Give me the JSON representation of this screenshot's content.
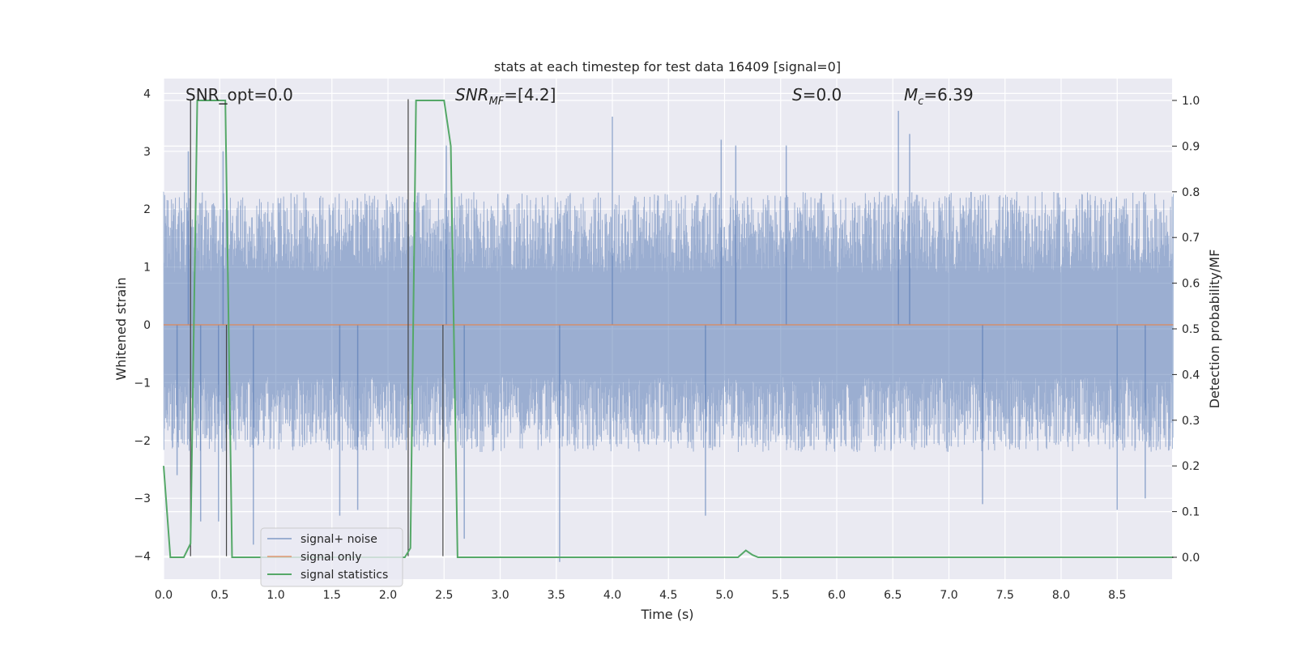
{
  "chart_data": {
    "type": "line",
    "title": "stats at each timestep for test data 16409 [signal=0]",
    "xlabel": "Time (s)",
    "ylabel_left": "Whitened strain",
    "ylabel_right": "Detection probability/MF",
    "xlim": [
      0.0,
      9.0
    ],
    "ylim_left": [
      -4.4,
      4.25
    ],
    "ylim_right": [
      -0.05,
      1.04
    ],
    "grid": true,
    "xticks": [
      "0.0",
      "0.5",
      "1.0",
      "1.5",
      "2.0",
      "2.5",
      "3.0",
      "3.5",
      "4.0",
      "4.5",
      "5.0",
      "5.5",
      "6.0",
      "6.5",
      "7.0",
      "7.5",
      "8.0",
      "8.5"
    ],
    "yticks_left": [
      "4",
      "3",
      "2",
      "1",
      "0",
      "−1",
      "−2",
      "−3",
      "−4"
    ],
    "yticks_right": [
      "1.0",
      "0.9",
      "0.8",
      "0.7",
      "0.6",
      "0.5",
      "0.4",
      "0.3",
      "0.2",
      "0.1",
      "0.0"
    ],
    "legend_position": "lower-left",
    "annotations": {
      "snr_opt": "SNR_opt=0.0",
      "snr_mf_main": "SNR",
      "snr_mf_sub": "MF",
      "snr_mf_rest": "=[4.2]",
      "s_main": "S",
      "s_rest": "=0.0",
      "mc_main": "M",
      "mc_sub": "c",
      "mc_rest": "=6.39"
    },
    "series": [
      {
        "name": "signal+ noise",
        "color": "#4c72b0",
        "axis": "left",
        "description_envelope": {
          "x": [
            0.0,
            9.0
          ],
          "typical_max": 2.2,
          "typical_min": -2.1
        },
        "spikes": [
          {
            "x": 0.12,
            "y": -2.6
          },
          {
            "x": 0.22,
            "y": 3.0
          },
          {
            "x": 0.33,
            "y": -3.4
          },
          {
            "x": 0.49,
            "y": -3.4
          },
          {
            "x": 0.53,
            "y": 3.0
          },
          {
            "x": 0.8,
            "y": -3.8
          },
          {
            "x": 1.57,
            "y": -3.3
          },
          {
            "x": 1.73,
            "y": -3.2
          },
          {
            "x": 2.52,
            "y": 3.1
          },
          {
            "x": 2.68,
            "y": -3.7
          },
          {
            "x": 3.53,
            "y": -4.1
          },
          {
            "x": 4.0,
            "y": 3.6
          },
          {
            "x": 4.83,
            "y": -3.3
          },
          {
            "x": 4.97,
            "y": 3.2
          },
          {
            "x": 5.1,
            "y": 3.1
          },
          {
            "x": 5.55,
            "y": 3.1
          },
          {
            "x": 6.55,
            "y": 3.7
          },
          {
            "x": 6.65,
            "y": 3.3
          },
          {
            "x": 7.3,
            "y": -3.1
          },
          {
            "x": 8.5,
            "y": -3.2
          },
          {
            "x": 8.75,
            "y": -3.0
          }
        ]
      },
      {
        "name": "signal only",
        "color": "#dd8452",
        "axis": "left",
        "x": [
          0.0,
          9.0
        ],
        "y": [
          0.0,
          0.0
        ]
      },
      {
        "name": "signal statistics",
        "color": "#55a868",
        "axis": "right",
        "x": [
          0.0,
          0.06,
          0.18,
          0.24,
          0.3,
          0.55,
          0.61,
          0.68,
          2.15,
          2.2,
          2.25,
          2.5,
          2.56,
          2.62,
          5.12,
          5.19,
          5.25,
          5.3,
          9.0
        ],
        "y": [
          0.2,
          0.0,
          0.0,
          0.03,
          1.0,
          1.0,
          0.0,
          0.0,
          0.0,
          0.02,
          1.0,
          1.0,
          0.9,
          0.0,
          0.0,
          0.015,
          0.005,
          0.0,
          0.0
        ]
      }
    ],
    "vertical_markers": [
      {
        "x": 0.24,
        "y_top": 3.9,
        "y_bottom": -4.0
      },
      {
        "x": 0.56,
        "y_top": -0.0,
        "y_bottom": -4.0
      },
      {
        "x": 2.18,
        "y_top": 3.9,
        "y_bottom": -4.0
      },
      {
        "x": 2.49,
        "y_top": -0.0,
        "y_bottom": -4.0
      }
    ]
  }
}
